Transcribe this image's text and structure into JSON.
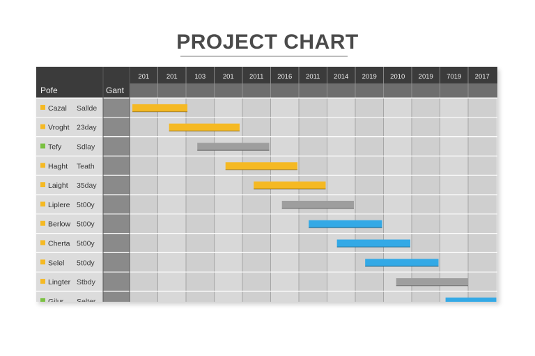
{
  "title": "PROJECT CHART",
  "chart_data": {
    "type": "gantt",
    "title": "PROJECT CHART",
    "header_labels": {
      "col1": "Pofe",
      "col2": "Gant"
    },
    "periods": [
      "201",
      "201",
      "103",
      "201",
      "2011",
      "2016",
      "2011",
      "2014",
      "2019",
      "2010",
      "2019",
      "7019",
      "2017"
    ],
    "tasks": [
      {
        "name": "Cazal",
        "status": "Sallde",
        "color": "#f5b923",
        "start": 0.1,
        "end": 2.05
      },
      {
        "name": "Vroght",
        "status": "23day",
        "color": "#f5b923",
        "start": 1.4,
        "end": 3.9
      },
      {
        "name": "Tefy",
        "status": "Sdlay",
        "color": "#9e9e9e",
        "start": 2.4,
        "end": 4.95
      },
      {
        "name": "Haght",
        "status": "Teath",
        "color": "#f5b923",
        "start": 3.4,
        "end": 5.95
      },
      {
        "name": "Laight",
        "status": "35day",
        "color": "#f5b923",
        "start": 4.4,
        "end": 6.95
      },
      {
        "name": "Liplere",
        "status": "5t00y",
        "color": "#9e9e9e",
        "start": 5.4,
        "end": 7.95
      },
      {
        "name": "Berlow",
        "status": "5t00y",
        "color": "#33a9e6",
        "start": 6.35,
        "end": 8.95
      },
      {
        "name": "Cherta",
        "status": "5t00y",
        "color": "#33a9e6",
        "start": 7.35,
        "end": 9.95
      },
      {
        "name": "Selel",
        "status": "5t0dy",
        "color": "#33a9e6",
        "start": 8.35,
        "end": 10.95
      },
      {
        "name": "Lingter",
        "status": "Stbdy",
        "color": "#9e9e9e",
        "start": 9.45,
        "end": 12.0
      },
      {
        "name": "Gilur",
        "status": "Selter",
        "color": "#33a9e6",
        "start": 11.2,
        "end": 13.0
      }
    ],
    "marker_colors": [
      "#f5b923",
      "#f5b923",
      "#7bc142",
      "#f5b923",
      "#f5b923",
      "#f5b923",
      "#f5b923",
      "#f5b923",
      "#f5b923",
      "#f5b923",
      "#7bc142"
    ]
  }
}
